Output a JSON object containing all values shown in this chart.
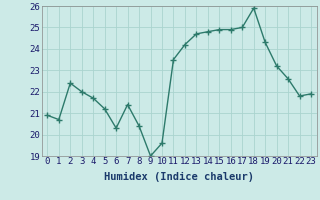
{
  "x": [
    0,
    1,
    2,
    3,
    4,
    5,
    6,
    7,
    8,
    9,
    10,
    11,
    12,
    13,
    14,
    15,
    16,
    17,
    18,
    19,
    20,
    21,
    22,
    23
  ],
  "y": [
    20.9,
    20.7,
    22.4,
    22.0,
    21.7,
    21.2,
    20.3,
    21.4,
    20.4,
    19.0,
    19.6,
    23.5,
    24.2,
    24.7,
    24.8,
    24.9,
    24.9,
    25.0,
    25.9,
    24.3,
    23.2,
    22.6,
    21.8,
    21.9
  ],
  "xlabel": "Humidex (Indice chaleur)",
  "ylim": [
    19,
    26
  ],
  "yticks": [
    19,
    20,
    21,
    22,
    23,
    24,
    25,
    26
  ],
  "xticks": [
    0,
    1,
    2,
    3,
    4,
    5,
    6,
    7,
    8,
    9,
    10,
    11,
    12,
    13,
    14,
    15,
    16,
    17,
    18,
    19,
    20,
    21,
    22,
    23
  ],
  "line_color": "#2d7a6b",
  "marker": "+",
  "marker_size": 4,
  "bg_color": "#cceae7",
  "grid_color": "#aad4cf",
  "xlabel_color": "#1a3a6b",
  "tick_color": "#1a1a6b",
  "xlabel_fontsize": 7.5,
  "tick_fontsize": 6.5,
  "linewidth": 1.0
}
